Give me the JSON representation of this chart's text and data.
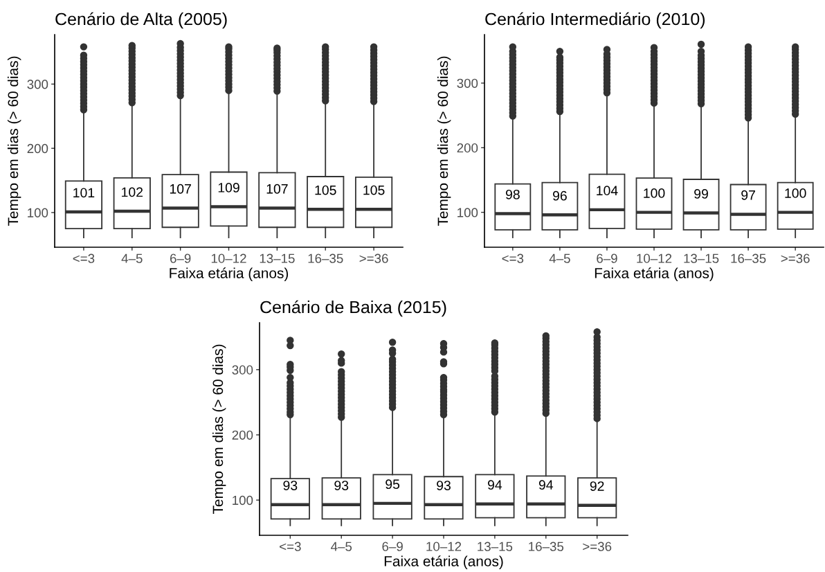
{
  "chart_data": [
    {
      "type": "box",
      "title": "Cenário de Alta (2005)",
      "xlabel": "Faixa etária (anos)",
      "ylabel": "Tempo em dias (> 60 dias)",
      "categories": [
        "<=3",
        "4–5",
        "6–9",
        "10–12",
        "13–15",
        "16–35",
        ">=36"
      ],
      "ylim": [
        46,
        377
      ],
      "yticks": [
        100,
        200,
        300
      ],
      "series": [
        {
          "color": "#333333",
          "boxes": [
            {
              "low": 61,
              "q1": 75,
              "median": 101,
              "q3": 149,
              "high": 258,
              "outliers": [
                260,
                265,
                270,
                275,
                280,
                285,
                290,
                295,
                300,
                305,
                310,
                315,
                320,
                325,
                330,
                335,
                340,
                345,
                358
              ]
            },
            {
              "low": 61,
              "q1": 75,
              "median": 102,
              "q3": 154,
              "high": 269,
              "outliers": [
                271,
                276,
                281,
                286,
                291,
                296,
                301,
                306,
                311,
                316,
                321,
                326,
                331,
                336,
                341,
                346,
                351,
                356,
                360
              ]
            },
            {
              "low": 61,
              "q1": 77,
              "median": 107,
              "q3": 159,
              "high": 280,
              "outliers": [
                282,
                287,
                292,
                297,
                302,
                307,
                312,
                317,
                322,
                327,
                332,
                337,
                342,
                347,
                352,
                357,
                363
              ]
            },
            {
              "low": 61,
              "q1": 79,
              "median": 109,
              "q3": 163,
              "high": 288,
              "outliers": [
                290,
                295,
                300,
                305,
                310,
                315,
                320,
                325,
                330,
                335,
                340,
                345,
                350,
                355,
                358
              ]
            },
            {
              "low": 61,
              "q1": 77,
              "median": 107,
              "q3": 162,
              "high": 287,
              "outliers": [
                289,
                294,
                299,
                304,
                309,
                314,
                319,
                324,
                329,
                334,
                339,
                344,
                349,
                353,
                356
              ]
            },
            {
              "low": 61,
              "q1": 77,
              "median": 105,
              "q3": 156,
              "high": 272,
              "outliers": [
                274,
                279,
                284,
                289,
                294,
                299,
                304,
                309,
                314,
                319,
                324,
                329,
                334,
                339,
                344,
                349,
                354,
                358
              ]
            },
            {
              "low": 61,
              "q1": 77,
              "median": 105,
              "q3": 155,
              "high": 271,
              "outliers": [
                273,
                278,
                283,
                288,
                293,
                298,
                303,
                308,
                313,
                318,
                323,
                328,
                333,
                338,
                343,
                348,
                353,
                358
              ]
            }
          ]
        }
      ],
      "annotations": [
        {
          "text": "101",
          "x": "<=3",
          "y": 101
        },
        {
          "text": "102",
          "x": "4–5",
          "y": 102
        },
        {
          "text": "107",
          "x": "6–9",
          "y": 107
        },
        {
          "text": "109",
          "x": "10–12",
          "y": 109
        },
        {
          "text": "107",
          "x": "13–15",
          "y": 107
        },
        {
          "text": "105",
          "x": "16–35",
          "y": 105
        },
        {
          "text": "105",
          "x": ">=36",
          "y": 105
        }
      ]
    },
    {
      "type": "box",
      "title": "Cenário Intermediário (2010)",
      "xlabel": "Faixa etária (anos)",
      "ylabel": "Tempo em dias (> 60 dias)",
      "categories": [
        "<=3",
        "4–5",
        "6–9",
        "10–12",
        "13–15",
        "16–35",
        ">=36"
      ],
      "ylim": [
        46,
        375
      ],
      "yticks": [
        100,
        200,
        300
      ],
      "series": [
        {
          "color": "#333333",
          "boxes": [
            {
              "low": 61,
              "q1": 73,
              "median": 98,
              "q3": 144,
              "high": 247,
              "outliers": [
                249,
                254,
                259,
                264,
                269,
                274,
                279,
                284,
                289,
                294,
                299,
                304,
                309,
                314,
                319,
                324,
                329,
                334,
                339,
                344,
                349,
                356
              ]
            },
            {
              "low": 61,
              "q1": 73,
              "median": 96,
              "q3": 146,
              "high": 255,
              "outliers": [
                256,
                261,
                266,
                271,
                276,
                281,
                286,
                291,
                296,
                301,
                306,
                311,
                316,
                321,
                326,
                331,
                336,
                340,
                349
              ]
            },
            {
              "low": 61,
              "q1": 75,
              "median": 104,
              "q3": 159,
              "high": 283,
              "outliers": [
                285,
                290,
                295,
                300,
                305,
                310,
                315,
                320,
                325,
                330,
                335,
                340,
                345,
                352
              ]
            },
            {
              "low": 61,
              "q1": 74,
              "median": 100,
              "q3": 153,
              "high": 267,
              "outliers": [
                269,
                274,
                279,
                284,
                289,
                294,
                299,
                304,
                309,
                314,
                319,
                324,
                329,
                334,
                339,
                344,
                349,
                355
              ]
            },
            {
              "low": 61,
              "q1": 73,
              "median": 99,
              "q3": 151,
              "high": 266,
              "outliers": [
                268,
                273,
                278,
                283,
                288,
                293,
                298,
                303,
                308,
                313,
                318,
                323,
                328,
                333,
                338,
                343,
                349,
                360
              ]
            },
            {
              "low": 61,
              "q1": 73,
              "median": 97,
              "q3": 143,
              "high": 244,
              "outliers": [
                246,
                251,
                256,
                261,
                266,
                271,
                276,
                281,
                286,
                291,
                296,
                301,
                306,
                311,
                316,
                321,
                326,
                331,
                336,
                341,
                346,
                351,
                356
              ]
            },
            {
              "low": 61,
              "q1": 74,
              "median": 100,
              "q3": 146,
              "high": 250,
              "outliers": [
                252,
                257,
                262,
                267,
                272,
                277,
                282,
                287,
                292,
                297,
                302,
                307,
                312,
                317,
                322,
                327,
                332,
                337,
                342,
                347,
                352,
                356
              ]
            }
          ]
        }
      ],
      "annotations": [
        {
          "text": "98",
          "x": "<=3",
          "y": 98
        },
        {
          "text": "96",
          "x": "4–5",
          "y": 96
        },
        {
          "text": "104",
          "x": "6–9",
          "y": 104
        },
        {
          "text": "100",
          "x": "10–12",
          "y": 100
        },
        {
          "text": "99",
          "x": "13–15",
          "y": 99
        },
        {
          "text": "97",
          "x": "16–35",
          "y": 97
        },
        {
          "text": "100",
          "x": ">=36",
          "y": 100
        }
      ]
    },
    {
      "type": "box",
      "title": "Cenário de Baixa (2015)",
      "xlabel": "Faixa etária (anos)",
      "ylabel": "Tempo em dias (> 60 dias)",
      "categories": [
        "<=3",
        "4–5",
        "6–9",
        "10–12",
        "13–15",
        "16–35",
        ">=36"
      ],
      "ylim": [
        46,
        372
      ],
      "yticks": [
        100,
        200,
        300
      ],
      "series": [
        {
          "color": "#333333",
          "boxes": [
            {
              "low": 61,
              "q1": 71,
              "median": 93,
              "q3": 133,
              "high": 228,
              "outliers": [
                231,
                235,
                240,
                245,
                250,
                255,
                260,
                265,
                270,
                275,
                280,
                288,
                299,
                304,
                308,
                337,
                345
              ]
            },
            {
              "low": 61,
              "q1": 71,
              "median": 93,
              "q3": 134,
              "high": 225,
              "outliers": [
                227,
                232,
                237,
                242,
                247,
                252,
                257,
                262,
                267,
                272,
                277,
                282,
                287,
                292,
                297,
                310,
                314,
                324
              ]
            },
            {
              "low": 61,
              "q1": 71,
              "median": 95,
              "q3": 139,
              "high": 240,
              "outliers": [
                242,
                247,
                252,
                257,
                262,
                267,
                272,
                277,
                282,
                287,
                292,
                297,
                302,
                307,
                312,
                316,
                325,
                330,
                342
              ]
            },
            {
              "low": 61,
              "q1": 71,
              "median": 93,
              "q3": 136,
              "high": 230,
              "outliers": [
                231,
                236,
                241,
                246,
                251,
                256,
                261,
                266,
                269,
                274,
                279,
                284,
                288,
                309,
                312,
                327,
                334,
                340
              ]
            },
            {
              "low": 61,
              "q1": 73,
              "median": 94,
              "q3": 139,
              "high": 234,
              "outliers": [
                235,
                240,
                245,
                250,
                255,
                260,
                265,
                270,
                275,
                280,
                285,
                290,
                298,
                303,
                308,
                313,
                318,
                323,
                328,
                333,
                338,
                341
              ]
            },
            {
              "low": 61,
              "q1": 73,
              "median": 94,
              "q3": 137,
              "high": 231,
              "outliers": [
                233,
                238,
                243,
                248,
                253,
                258,
                263,
                268,
                273,
                278,
                283,
                288,
                293,
                298,
                303,
                308,
                313,
                318,
                323,
                328,
                333,
                338,
                343,
                348,
                352
              ]
            },
            {
              "low": 61,
              "q1": 73,
              "median": 92,
              "q3": 134,
              "high": 223,
              "outliers": [
                225,
                230,
                235,
                240,
                245,
                250,
                255,
                260,
                265,
                270,
                275,
                280,
                285,
                290,
                295,
                300,
                305,
                310,
                315,
                320,
                325,
                330,
                335,
                340,
                345,
                350,
                358
              ]
            }
          ]
        }
      ],
      "annotations": [
        {
          "text": "93",
          "x": "<=3",
          "y": 93
        },
        {
          "text": "93",
          "x": "4–5",
          "y": 93
        },
        {
          "text": "95",
          "x": "6–9",
          "y": 95
        },
        {
          "text": "93",
          "x": "10–12",
          "y": 93
        },
        {
          "text": "94",
          "x": "13–15",
          "y": 94
        },
        {
          "text": "94",
          "x": "16–35",
          "y": 94
        },
        {
          "text": "92",
          "x": ">=36",
          "y": 92
        }
      ]
    }
  ]
}
